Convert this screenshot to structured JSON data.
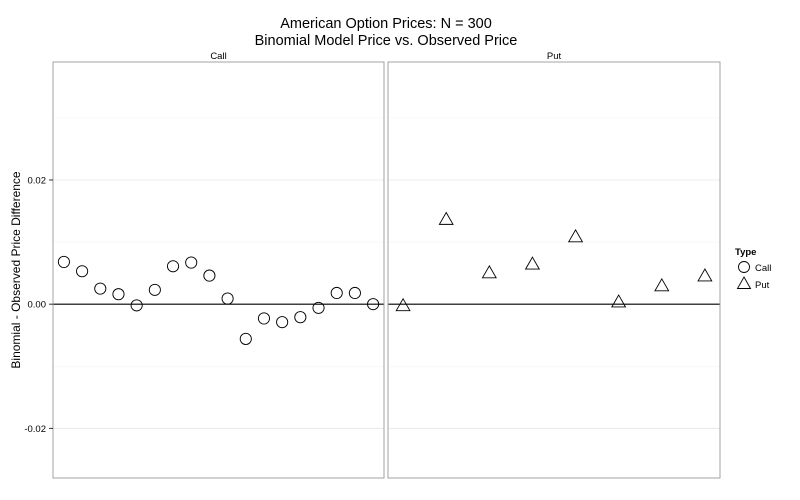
{
  "chart_data": {
    "type": "scatter",
    "title": "American Option Prices: N = 300",
    "subtitle": "Binomial Model Price vs. Observed Price",
    "ylabel": "Binomial - Observed Price Difference",
    "xlabel": "",
    "ylim": [
      -0.028,
      0.039
    ],
    "yticks": [
      -0.02,
      0.0,
      0.02
    ],
    "ytick_labels": [
      "-0.02",
      "0.00",
      "0.02"
    ],
    "grid": true,
    "reference_line": 0.0,
    "legend": {
      "title": "Type",
      "position": "right",
      "entries": [
        {
          "label": "Call",
          "shape": "circle"
        },
        {
          "label": "Put",
          "shape": "triangle"
        }
      ]
    },
    "panels": [
      {
        "label": "Call",
        "shape": "circle",
        "x": [
          1,
          2,
          3,
          4,
          5,
          6,
          7,
          8,
          9,
          10,
          11,
          12,
          13,
          14,
          15,
          16,
          17,
          18
        ],
        "y": [
          0.0068,
          0.0053,
          0.0025,
          0.0016,
          -0.0002,
          0.0023,
          0.0061,
          0.0067,
          0.0046,
          0.0009,
          -0.0056,
          -0.0023,
          -0.0029,
          -0.0021,
          -0.0006,
          0.0018,
          0.0018,
          0.0
        ],
        "xlim": [
          0.4,
          18.6
        ]
      },
      {
        "label": "Put",
        "shape": "triangle",
        "x": [
          1,
          2,
          3,
          4,
          5,
          6,
          7,
          8
        ],
        "y": [
          -0.0003,
          0.0136,
          0.005,
          0.0064,
          0.0108,
          0.0003,
          0.0029,
          0.0045
        ],
        "xlim": [
          0.65,
          8.35
        ]
      }
    ]
  }
}
